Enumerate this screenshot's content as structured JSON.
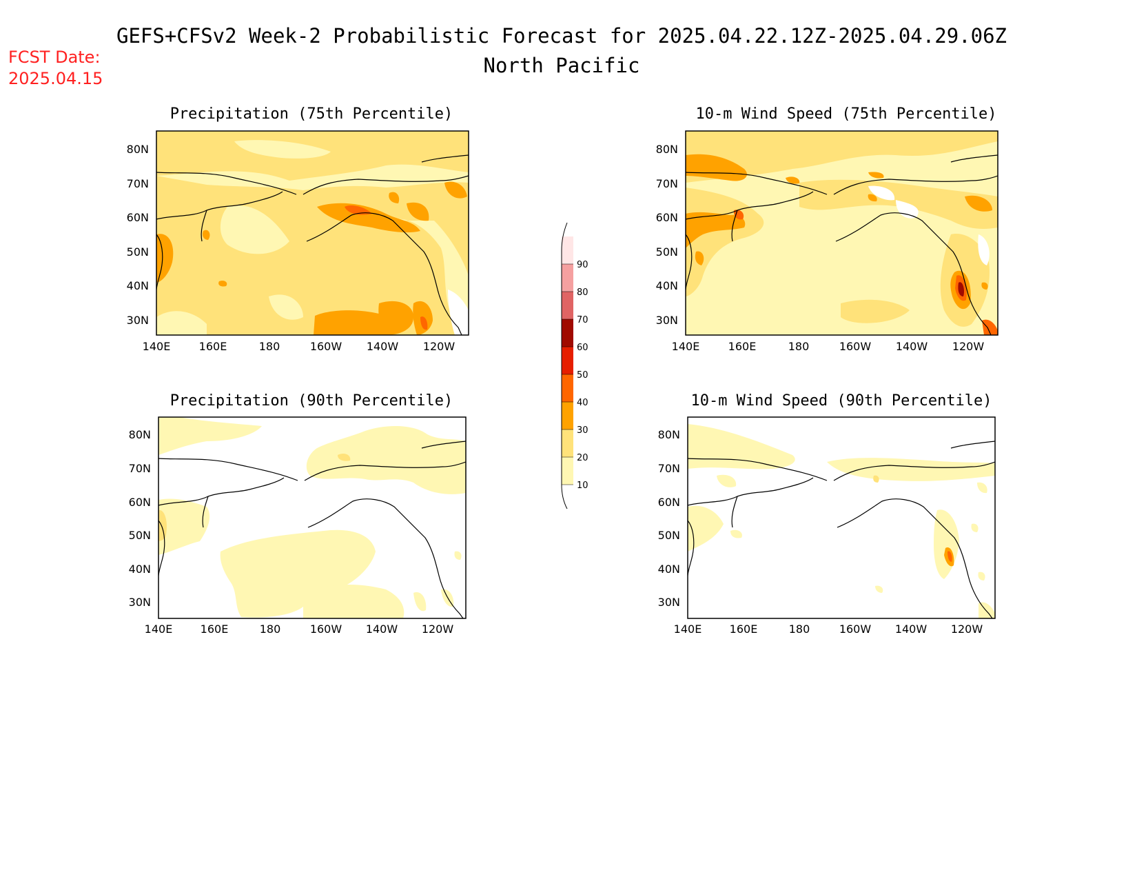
{
  "header": {
    "title": "GEFS+CFSv2 Week-2 Probabilistic Forecast for 2025.04.22.12Z-2025.04.29.06Z",
    "region": "North Pacific",
    "fcst_label": "FCST Date:",
    "fcst_date": "2025.04.15",
    "fcst_color": "#ff2020"
  },
  "axes": {
    "lon_labels": [
      "140E",
      "160E",
      "180",
      "160W",
      "140W",
      "120W"
    ],
    "lat_labels": [
      "80N",
      "70N",
      "60N",
      "50N",
      "40N",
      "30N"
    ]
  },
  "panels": [
    {
      "id": "precip-75",
      "title": "Precipitation (75th Percentile)"
    },
    {
      "id": "wind-75",
      "title": "10-m Wind Speed (75th Percentile)"
    },
    {
      "id": "precip-90",
      "title": "Precipitation (90th Percentile)"
    },
    {
      "id": "wind-90",
      "title": "10-m Wind Speed (90th Percentile)"
    }
  ],
  "colorbar": {
    "levels": [
      "10",
      "20",
      "30",
      "40",
      "50",
      "60",
      "70",
      "80",
      "90"
    ],
    "colors": [
      "#fff7b3",
      "#ffe27a",
      "#ffa200",
      "#ff6600",
      "#e61e00",
      "#a00a00",
      "#e06464",
      "#f5a0a0",
      "#ffe6e6"
    ]
  }
}
